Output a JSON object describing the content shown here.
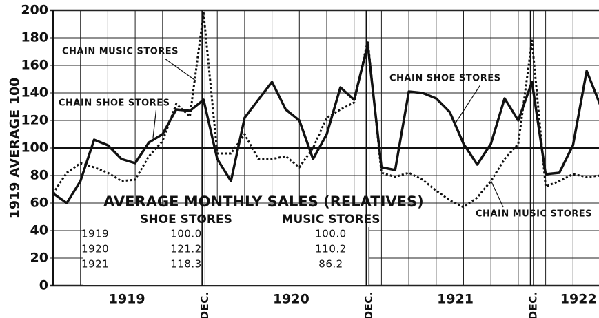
{
  "chart_data": {
    "type": "line",
    "ylabel": "1919 AVERAGE 100",
    "categories": [
      null,
      null,
      null,
      null,
      null,
      "1919",
      null,
      null,
      null,
      null,
      null,
      "DEC.",
      null,
      null,
      null,
      null,
      null,
      "1920",
      null,
      null,
      null,
      null,
      null,
      "DEC.",
      null,
      null,
      null,
      null,
      null,
      "1921",
      null,
      null,
      null,
      null,
      null,
      "DEC.",
      null,
      null,
      "1922",
      null,
      null
    ],
    "series": [
      {
        "name": "CHAIN SHOE STORES",
        "color": "#111111",
        "style": "solid",
        "values": [
          67,
          60,
          76,
          106,
          102,
          92,
          89,
          104,
          110,
          128,
          127,
          135,
          92,
          76,
          122,
          135,
          148,
          128,
          120,
          92,
          110,
          144,
          135,
          175,
          86,
          84,
          141,
          140,
          136,
          126,
          103,
          88,
          103,
          136,
          120,
          148,
          81,
          82,
          102,
          156,
          131
        ]
      },
      {
        "name": "CHAIN MUSIC STORES",
        "color": "#111111",
        "style": "dotted",
        "values": [
          67,
          82,
          89,
          86,
          82,
          76,
          77,
          94,
          105,
          132,
          123,
          198,
          96,
          96,
          110,
          92,
          92,
          94,
          86,
          100,
          122,
          128,
          133,
          178,
          82,
          79,
          82,
          77,
          69,
          62,
          57,
          64,
          76,
          92,
          103,
          178,
          72,
          76,
          81,
          79,
          80
        ]
      }
    ],
    "ylim": [
      0,
      200
    ],
    "yticks": [
      0,
      20,
      40,
      60,
      80,
      100,
      120,
      140,
      160,
      180,
      200
    ],
    "hline": 100,
    "grid": true,
    "annotations": [
      "CHAIN MUSIC STORES",
      "CHAIN SHOE STORES",
      "CHAIN SHOE STORES",
      "CHAIN MUSIC STORES"
    ],
    "table": {
      "title": "AVERAGE MONTHLY SALES (RELATIVES)",
      "headers": [
        "SHOE STORES",
        "MUSIC STORES"
      ],
      "rows": [
        [
          "1919",
          "100.0",
          "100.0"
        ],
        [
          "1920",
          "121.2",
          "110.2"
        ],
        [
          "1921",
          "118.3",
          "86.2"
        ]
      ]
    }
  }
}
